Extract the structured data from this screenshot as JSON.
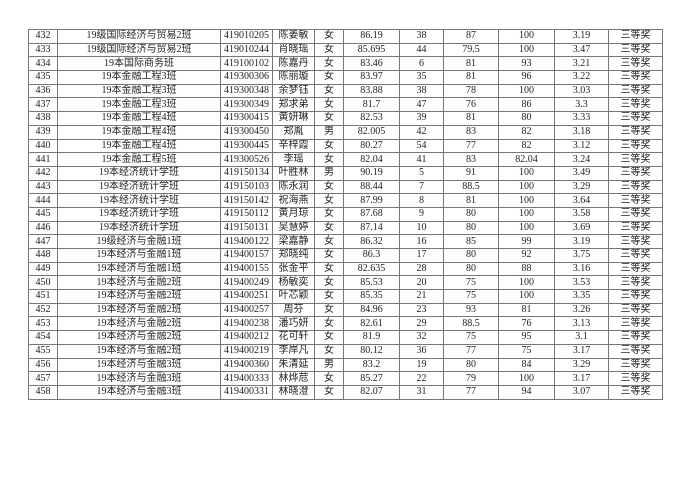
{
  "table": {
    "rows": [
      [
        "432",
        "19级国际经济与贸易2班",
        "419010205",
        "陈姜敏",
        "女",
        "86.19",
        "38",
        "87",
        "100",
        "3.19",
        "三等奖"
      ],
      [
        "433",
        "19级国际经济与贸易2班",
        "419010244",
        "肖晓瑶",
        "女",
        "85.695",
        "44",
        "79.5",
        "100",
        "3.47",
        "三等奖"
      ],
      [
        "434",
        "19本国际商务班",
        "419100102",
        "陈嘉丹",
        "女",
        "83.46",
        "6",
        "81",
        "93",
        "3.21",
        "三等奖"
      ],
      [
        "435",
        "19本金融工程3班",
        "419300306",
        "陈丽璇",
        "女",
        "83.97",
        "35",
        "81",
        "96",
        "3.22",
        "三等奖"
      ],
      [
        "436",
        "19本金融工程3班",
        "419300348",
        "余梦钰",
        "女",
        "83.88",
        "38",
        "78",
        "100",
        "3.03",
        "三等奖"
      ],
      [
        "437",
        "19本金融工程3班",
        "419300349",
        "郑求弟",
        "女",
        "81.7",
        "47",
        "76",
        "86",
        "3.3",
        "三等奖"
      ],
      [
        "438",
        "19本金融工程4班",
        "419300415",
        "黄妍琳",
        "女",
        "82.53",
        "39",
        "81",
        "80",
        "3.33",
        "三等奖"
      ],
      [
        "439",
        "19本金融工程4班",
        "419300450",
        "郑胤",
        "男",
        "82.005",
        "42",
        "83",
        "82",
        "3.18",
        "三等奖"
      ],
      [
        "440",
        "19本金融工程4班",
        "419300445",
        "辛梓霞",
        "女",
        "80.27",
        "54",
        "77",
        "82",
        "3.12",
        "三等奖"
      ],
      [
        "441",
        "19本金融工程5班",
        "419300526",
        "李瑶",
        "女",
        "82.04",
        "41",
        "83",
        "82.04",
        "3.24",
        "三等奖"
      ],
      [
        "442",
        "19本经济统计学班",
        "419150134",
        "叶胜林",
        "男",
        "90.19",
        "5",
        "91",
        "100",
        "3.49",
        "三等奖"
      ],
      [
        "443",
        "19本经济统计学班",
        "419150103",
        "陈永润",
        "女",
        "88.44",
        "7",
        "88.5",
        "100",
        "3.29",
        "三等奖"
      ],
      [
        "444",
        "19本经济统计学班",
        "419150142",
        "祝海燕",
        "女",
        "87.99",
        "8",
        "81",
        "100",
        "3.64",
        "三等奖"
      ],
      [
        "445",
        "19本经济统计学班",
        "419150112",
        "黄月琼",
        "女",
        "87.68",
        "9",
        "80",
        "100",
        "3.58",
        "三等奖"
      ],
      [
        "446",
        "19本经济统计学班",
        "419150131",
        "吴慧婷",
        "女",
        "87.14",
        "10",
        "80",
        "100",
        "3.69",
        "三等奖"
      ],
      [
        "447",
        "19级经济与金融1班",
        "419400122",
        "梁嘉静",
        "女",
        "86.32",
        "16",
        "85",
        "99",
        "3.19",
        "三等奖"
      ],
      [
        "448",
        "19本经济与金融1班",
        "419400157",
        "郑晓纯",
        "女",
        "86.3",
        "17",
        "80",
        "92",
        "3.75",
        "三等奖"
      ],
      [
        "449",
        "19本经济与金融1班",
        "419400155",
        "张金平",
        "女",
        "82.635",
        "28",
        "80",
        "88",
        "3.16",
        "三等奖"
      ],
      [
        "450",
        "19本经济与金融2班",
        "419400249",
        "杨敏奕",
        "女",
        "85.53",
        "20",
        "75",
        "100",
        "3.53",
        "三等奖"
      ],
      [
        "451",
        "19本经济与金融2班",
        "419400251",
        "叶芯颖",
        "女",
        "85.35",
        "21",
        "75",
        "100",
        "3.35",
        "三等奖"
      ],
      [
        "452",
        "19本经济与金融2班",
        "419400257",
        "周芬",
        "女",
        "84.96",
        "23",
        "93",
        "81",
        "3.26",
        "三等奖"
      ],
      [
        "453",
        "19本经济与金融2班",
        "419400238",
        "潘巧妍",
        "女",
        "82.61",
        "29",
        "88.5",
        "76",
        "3.13",
        "三等奖"
      ],
      [
        "454",
        "19本经济与金融2班",
        "419400212",
        "花可轩",
        "女",
        "81.9",
        "32",
        "75",
        "95",
        "3.1",
        "三等奖"
      ],
      [
        "455",
        "19本经济与金融2班",
        "419400219",
        "李岸凡",
        "女",
        "80.12",
        "36",
        "77",
        "75",
        "3.17",
        "三等奖"
      ],
      [
        "456",
        "19本经济与金融3班",
        "419400360",
        "朱清延",
        "男",
        "83.2",
        "19",
        "80",
        "84",
        "3.29",
        "三等奖"
      ],
      [
        "457",
        "19本经济与金融3班",
        "419400333",
        "林烨苊",
        "女",
        "85.27",
        "22",
        "79",
        "100",
        "3.17",
        "三等奖"
      ],
      [
        "458",
        "19本经济与金融3班",
        "419400331",
        "林晓澄",
        "女",
        "82.07",
        "31",
        "77",
        "94",
        "3.07",
        "三等奖"
      ]
    ]
  }
}
